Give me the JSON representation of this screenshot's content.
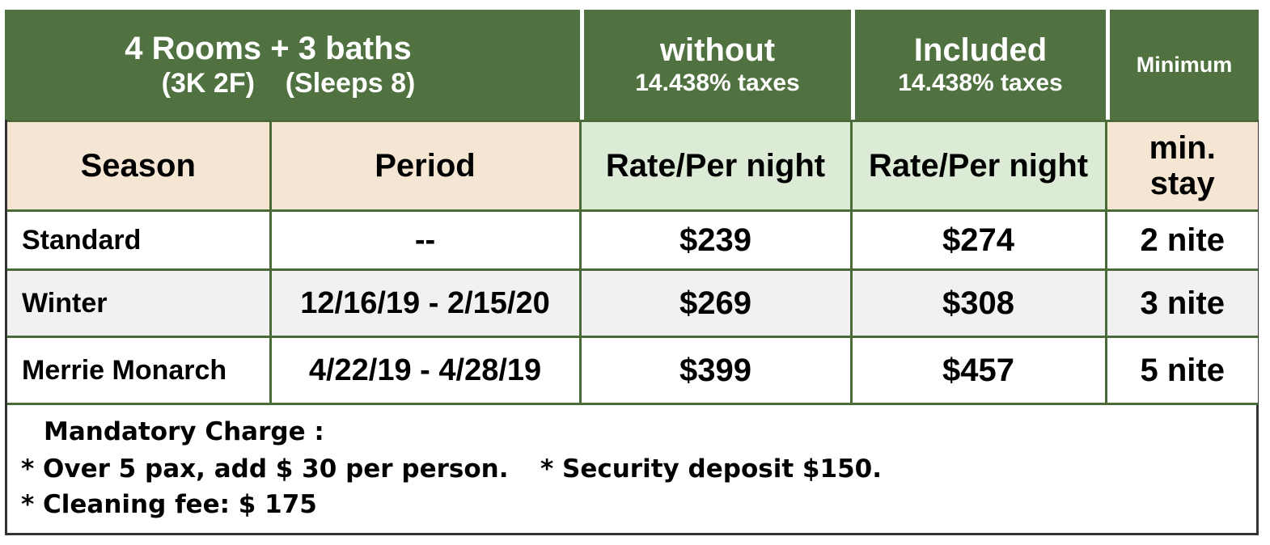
{
  "header": {
    "title_line1": "4 Rooms + 3 baths",
    "title_line2": "(3K 2F)    (Sleeps 8)",
    "col_without_line1": "without",
    "col_without_line2": "14.438% taxes",
    "col_included_line1": "Included",
    "col_included_line2": "14.438% taxes",
    "col_minimum": "Minimum"
  },
  "subheader": {
    "season": "Season",
    "period": "Period",
    "rate_without": "Rate/Per night",
    "rate_included": "Rate/Per night",
    "min_stay_line1": "min.",
    "min_stay_line2": "stay"
  },
  "rows": [
    {
      "season": "Standard",
      "period": "--",
      "rate_without": "$239",
      "rate_included": "$274",
      "min_stay": "2 nite"
    },
    {
      "season": "Winter",
      "period": "12/16/19 - 2/15/20",
      "rate_without": "$269",
      "rate_included": "$308",
      "min_stay": "3 nite"
    },
    {
      "season": "Merrie Monarch",
      "period": "4/22/19 - 4/28/19",
      "rate_without": "$399",
      "rate_included": "$457",
      "min_stay": "5 nite"
    }
  ],
  "notes": {
    "heading": "Mandatory Charge :",
    "extra_person": "* Over 5 pax, add $ 30 per person.",
    "security_deposit": "* Security deposit $150.",
    "cleaning_fee": "* Cleaning fee: $ 175"
  },
  "colors": {
    "header_green": "#507140",
    "tan": "#f4e6d2",
    "mint": "#dcebd6",
    "row_gray": "#f1f1f1"
  }
}
